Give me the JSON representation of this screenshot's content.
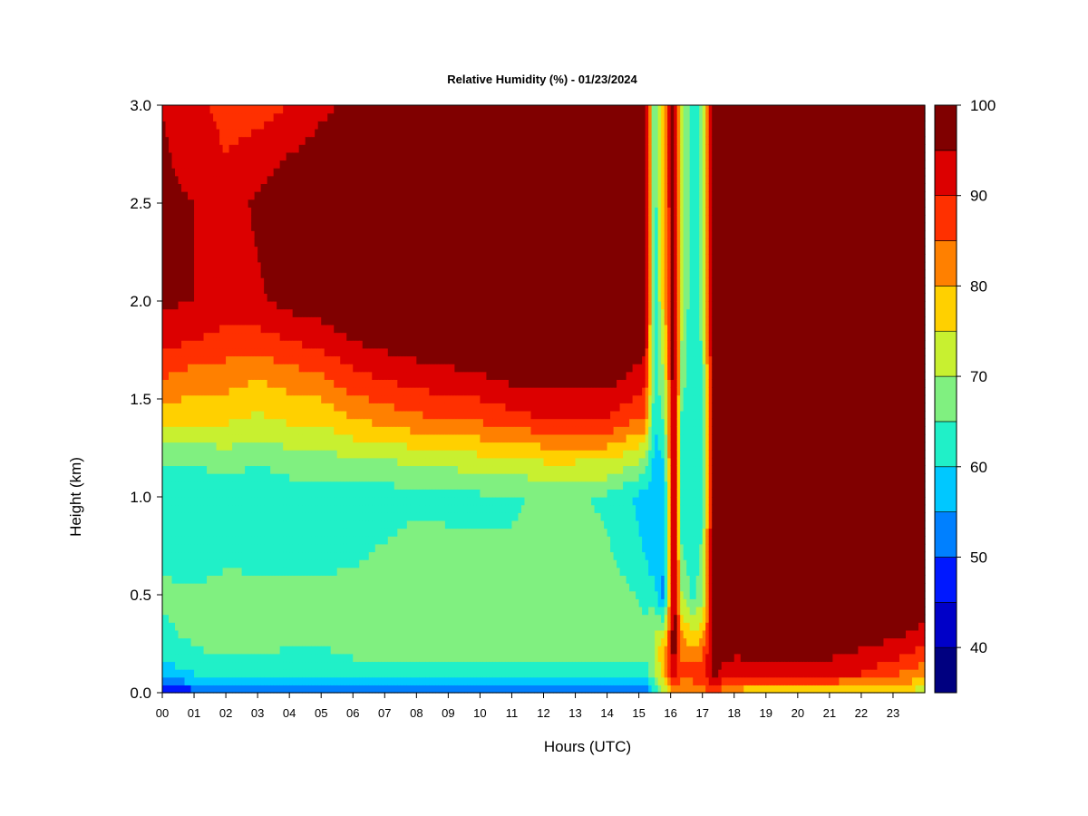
{
  "chart_data": {
    "type": "heatmap",
    "title": "Relative Humidity (%) - 01/23/2024",
    "xlabel": "Hours (UTC)",
    "ylabel": "Height (km)",
    "xlim": [
      0,
      24
    ],
    "ylim": [
      0,
      3.0
    ],
    "x_ticks": [
      "00",
      "01",
      "02",
      "03",
      "04",
      "05",
      "06",
      "07",
      "08",
      "09",
      "10",
      "11",
      "12",
      "13",
      "14",
      "15",
      "16",
      "17",
      "18",
      "19",
      "20",
      "21",
      "22",
      "23"
    ],
    "y_ticks": [
      "0.0",
      "0.5",
      "1.0",
      "1.5",
      "2.0",
      "2.5",
      "3.0"
    ],
    "colorbar": {
      "range": [
        35,
        100
      ],
      "tick_labels": [
        "40",
        "50",
        "60",
        "70",
        "80",
        "90",
        "100"
      ],
      "levels": [
        35,
        40,
        45,
        50,
        55,
        60,
        65,
        70,
        75,
        80,
        85,
        90,
        95,
        100
      ],
      "colors": [
        "#000080",
        "#0000c8",
        "#0018ff",
        "#0080ff",
        "#00c8ff",
        "#20f0c8",
        "#80f080",
        "#c8f030",
        "#ffd000",
        "#ff8000",
        "#ff3000",
        "#dc0000",
        "#800000"
      ]
    },
    "heights_km": [
      0.0,
      0.05,
      0.1,
      0.2,
      0.3,
      0.5,
      0.7,
      1.0,
      1.2,
      1.4,
      1.6,
      1.8,
      2.0,
      2.5,
      3.0
    ],
    "profiles": [
      {
        "hour": 0.0,
        "rh": [
          45,
          52,
          57,
          62,
          64,
          66,
          64,
          60,
          66,
          78,
          85,
          92,
          96,
          96,
          95
        ]
      },
      {
        "hour": 1.0,
        "rh": [
          47,
          55,
          60,
          64,
          66,
          66,
          62,
          60,
          66,
          76,
          82,
          90,
          95,
          95,
          92
        ]
      },
      {
        "hour": 2.0,
        "rh": [
          47,
          55,
          60,
          66,
          68,
          67,
          64,
          62,
          68,
          76,
          82,
          88,
          93,
          92,
          88
        ]
      },
      {
        "hour": 3.0,
        "rh": [
          47,
          55,
          61,
          66,
          67,
          66,
          64,
          60,
          66,
          74,
          80,
          88,
          94,
          96,
          88
        ]
      },
      {
        "hour": 4.0,
        "rh": [
          48,
          56,
          61,
          64,
          66,
          66,
          64,
          62,
          68,
          76,
          82,
          90,
          97,
          100,
          90
        ]
      },
      {
        "hour": 5.0,
        "rh": [
          48,
          56,
          61,
          64,
          66,
          66,
          64,
          62,
          68,
          76,
          84,
          92,
          98,
          100,
          94
        ]
      },
      {
        "hour": 6.0,
        "rh": [
          48,
          56,
          61,
          66,
          67,
          67,
          64,
          62,
          70,
          80,
          88,
          95,
          100,
          100,
          96
        ]
      },
      {
        "hour": 7.0,
        "rh": [
          48,
          56,
          61,
          66,
          68,
          67,
          66,
          62,
          70,
          82,
          90,
          97,
          100,
          100,
          97
        ]
      },
      {
        "hour": 8.0,
        "rh": [
          49,
          56,
          62,
          67,
          70,
          68,
          67,
          64,
          72,
          84,
          92,
          98,
          100,
          100,
          98
        ]
      },
      {
        "hour": 9.0,
        "rh": [
          49,
          57,
          62,
          66,
          68,
          68,
          66,
          64,
          72,
          85,
          93,
          99,
          100,
          100,
          98
        ]
      },
      {
        "hour": 10.0,
        "rh": [
          49,
          57,
          62,
          66,
          68,
          68,
          66,
          64,
          74,
          86,
          94,
          100,
          100,
          100,
          99
        ]
      },
      {
        "hour": 11.0,
        "rh": [
          49,
          57,
          62,
          66,
          68,
          68,
          66,
          64,
          74,
          88,
          96,
          100,
          100,
          100,
          99
        ]
      },
      {
        "hour": 12.0,
        "rh": [
          49,
          57,
          62,
          67,
          70,
          68,
          67,
          66,
          76,
          90,
          97,
          100,
          100,
          100,
          100
        ]
      },
      {
        "hour": 13.0,
        "rh": [
          49,
          57,
          62,
          66,
          68,
          68,
          66,
          66,
          76,
          90,
          97,
          100,
          100,
          100,
          100
        ]
      },
      {
        "hour": 14.0,
        "rh": [
          48,
          56,
          62,
          66,
          68,
          68,
          66,
          64,
          76,
          90,
          97,
          100,
          100,
          100,
          100
        ]
      },
      {
        "hour": 15.2,
        "rh": [
          50,
          58,
          62,
          66,
          66,
          64,
          60,
          58,
          70,
          84,
          92,
          97,
          100,
          100,
          100
        ]
      },
      {
        "hour": 15.5,
        "rh": [
          60,
          64,
          68,
          70,
          70,
          62,
          56,
          56,
          58,
          60,
          62,
          62,
          62,
          62,
          62
        ]
      },
      {
        "hour": 15.8,
        "rh": [
          70,
          76,
          80,
          82,
          72,
          52,
          56,
          56,
          60,
          66,
          70,
          74,
          78,
          80,
          80
        ]
      },
      {
        "hour": 16.1,
        "rh": [
          82,
          90,
          94,
          98,
          100,
          100,
          100,
          100,
          100,
          100,
          100,
          100,
          100,
          100,
          100
        ]
      },
      {
        "hour": 16.35,
        "rh": [
          78,
          84,
          86,
          84,
          80,
          70,
          66,
          62,
          62,
          64,
          68,
          70,
          72,
          72,
          72
        ]
      },
      {
        "hour": 16.7,
        "rh": [
          80,
          84,
          88,
          82,
          76,
          64,
          62,
          60,
          62,
          60,
          60,
          60,
          60,
          60,
          60
        ]
      },
      {
        "hour": 17.0,
        "rh": [
          82,
          86,
          88,
          84,
          78,
          68,
          66,
          64,
          64,
          64,
          64,
          66,
          66,
          66,
          66
        ]
      },
      {
        "hour": 17.35,
        "rh": [
          84,
          92,
          96,
          98,
          99,
          100,
          100,
          100,
          100,
          100,
          100,
          100,
          100,
          100,
          100
        ]
      },
      {
        "hour": 18.0,
        "rh": [
          78,
          84,
          90,
          96,
          99,
          100,
          100,
          100,
          100,
          100,
          100,
          100,
          100,
          100,
          100
        ]
      },
      {
        "hour": 19.0,
        "rh": [
          76,
          84,
          92,
          97,
          100,
          100,
          100,
          100,
          100,
          100,
          100,
          100,
          100,
          100,
          100
        ]
      },
      {
        "hour": 20.0,
        "rh": [
          76,
          84,
          92,
          96,
          100,
          100,
          100,
          100,
          100,
          100,
          100,
          100,
          100,
          100,
          100
        ]
      },
      {
        "hour": 21.0,
        "rh": [
          76,
          84,
          92,
          96,
          99,
          100,
          100,
          100,
          100,
          100,
          100,
          100,
          100,
          100,
          100
        ]
      },
      {
        "hour": 22.0,
        "rh": [
          74,
          82,
          90,
          94,
          98,
          100,
          100,
          100,
          100,
          100,
          100,
          100,
          100,
          100,
          100
        ]
      },
      {
        "hour": 23.0,
        "rh": [
          74,
          82,
          86,
          92,
          96,
          100,
          100,
          100,
          100,
          99,
          99,
          100,
          100,
          100,
          100
        ]
      },
      {
        "hour": 23.9,
        "rh": [
          72,
          78,
          82,
          88,
          94,
          98,
          100,
          100,
          100,
          98,
          96,
          100,
          100,
          100,
          100
        ]
      }
    ]
  }
}
